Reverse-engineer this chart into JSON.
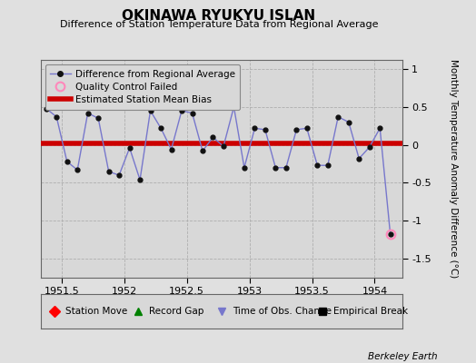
{
  "title": "OKINAWA RYUKYU ISLAN",
  "subtitle": "Difference of Station Temperature Data from Regional Average",
  "ylabel": "Monthly Temperature Anomaly Difference (°C)",
  "credit": "Berkeley Earth",
  "xlim": [
    1951.33,
    1954.22
  ],
  "ylim": [
    -1.75,
    1.12
  ],
  "yticks": [
    -1.5,
    -1.0,
    -0.5,
    0,
    0.5,
    1.0
  ],
  "xticks": [
    1951.5,
    1952.0,
    1952.5,
    1953.0,
    1953.5,
    1954.0
  ],
  "xticklabels": [
    "1951.5",
    "1952",
    "1952.5",
    "1953",
    "1953.5",
    "1954"
  ],
  "bias_value": 0.02,
  "background_color": "#e0e0e0",
  "plot_bg_color": "#d8d8d8",
  "line_color": "#7777cc",
  "marker_color": "#111111",
  "bias_color": "#cc0000",
  "qc_color": "#ff88bb",
  "x_data": [
    1951.375,
    1951.458,
    1951.542,
    1951.625,
    1951.708,
    1951.792,
    1951.875,
    1951.958,
    1952.042,
    1952.125,
    1952.208,
    1952.292,
    1952.375,
    1952.458,
    1952.542,
    1952.625,
    1952.708,
    1952.792,
    1952.875,
    1952.958,
    1953.042,
    1953.125,
    1953.208,
    1953.292,
    1953.375,
    1953.458,
    1953.542,
    1953.625,
    1953.708,
    1953.792,
    1953.875,
    1953.958,
    1954.042,
    1954.125
  ],
  "y_data": [
    0.48,
    0.37,
    -0.22,
    -0.33,
    0.42,
    0.35,
    -0.35,
    -0.4,
    -0.04,
    -0.46,
    0.45,
    0.22,
    -0.06,
    0.45,
    0.42,
    -0.08,
    0.1,
    -0.02,
    0.5,
    -0.3,
    0.22,
    0.2,
    -0.3,
    -0.3,
    0.2,
    0.22,
    -0.27,
    -0.27,
    0.37,
    0.3,
    -0.18,
    -0.03,
    0.22,
    -1.18
  ],
  "qc_failed_x": [
    1954.125
  ],
  "qc_failed_y": [
    -1.18
  ]
}
